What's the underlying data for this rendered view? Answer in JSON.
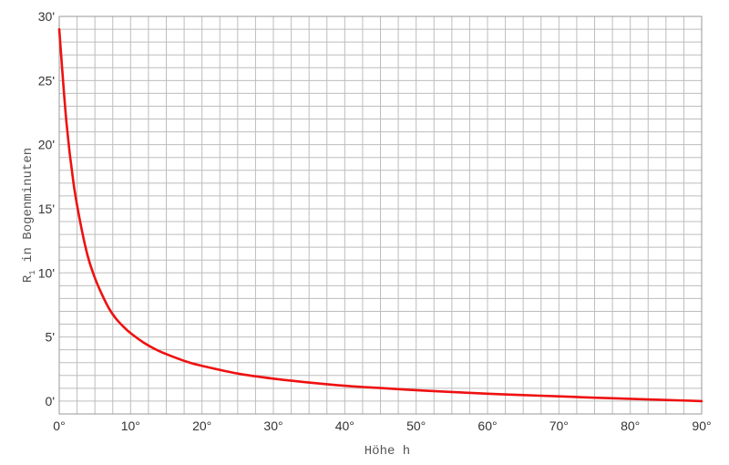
{
  "chart_data": {
    "type": "line",
    "xlabel": "Höhe h",
    "ylabel": "R",
    "ylabel_subscript": "1",
    "ylabel_suffix": " in Bogenminuten",
    "xlim": [
      0,
      90
    ],
    "ylim": [
      -1,
      30
    ],
    "grid": true,
    "x_ticks": [
      0,
      10,
      20,
      30,
      40,
      50,
      60,
      70,
      80,
      90
    ],
    "x_tick_labels": [
      "0°",
      "10°",
      "20°",
      "30°",
      "40°",
      "50°",
      "60°",
      "70°",
      "80°",
      "90°"
    ],
    "y_ticks": [
      0,
      5,
      10,
      15,
      20,
      25,
      30
    ],
    "y_tick_labels": [
      "0'",
      "5'",
      "10'",
      "15'",
      "20'",
      "25'",
      "30'"
    ],
    "series": [
      {
        "color": "#ee1111",
        "x": [
          0,
          1,
          2,
          3,
          4,
          5,
          6,
          7,
          8,
          9,
          10,
          12,
          14,
          16,
          18,
          20,
          25,
          30,
          35,
          40,
          45,
          50,
          55,
          60,
          65,
          70,
          75,
          80,
          85,
          90
        ],
        "y": [
          29.0,
          21.8,
          17.0,
          13.8,
          11.3,
          9.6,
          8.3,
          7.2,
          6.4,
          5.8,
          5.3,
          4.5,
          3.9,
          3.45,
          3.05,
          2.75,
          2.15,
          1.75,
          1.45,
          1.2,
          1.02,
          0.85,
          0.71,
          0.58,
          0.47,
          0.37,
          0.27,
          0.18,
          0.09,
          0.0
        ]
      }
    ]
  }
}
